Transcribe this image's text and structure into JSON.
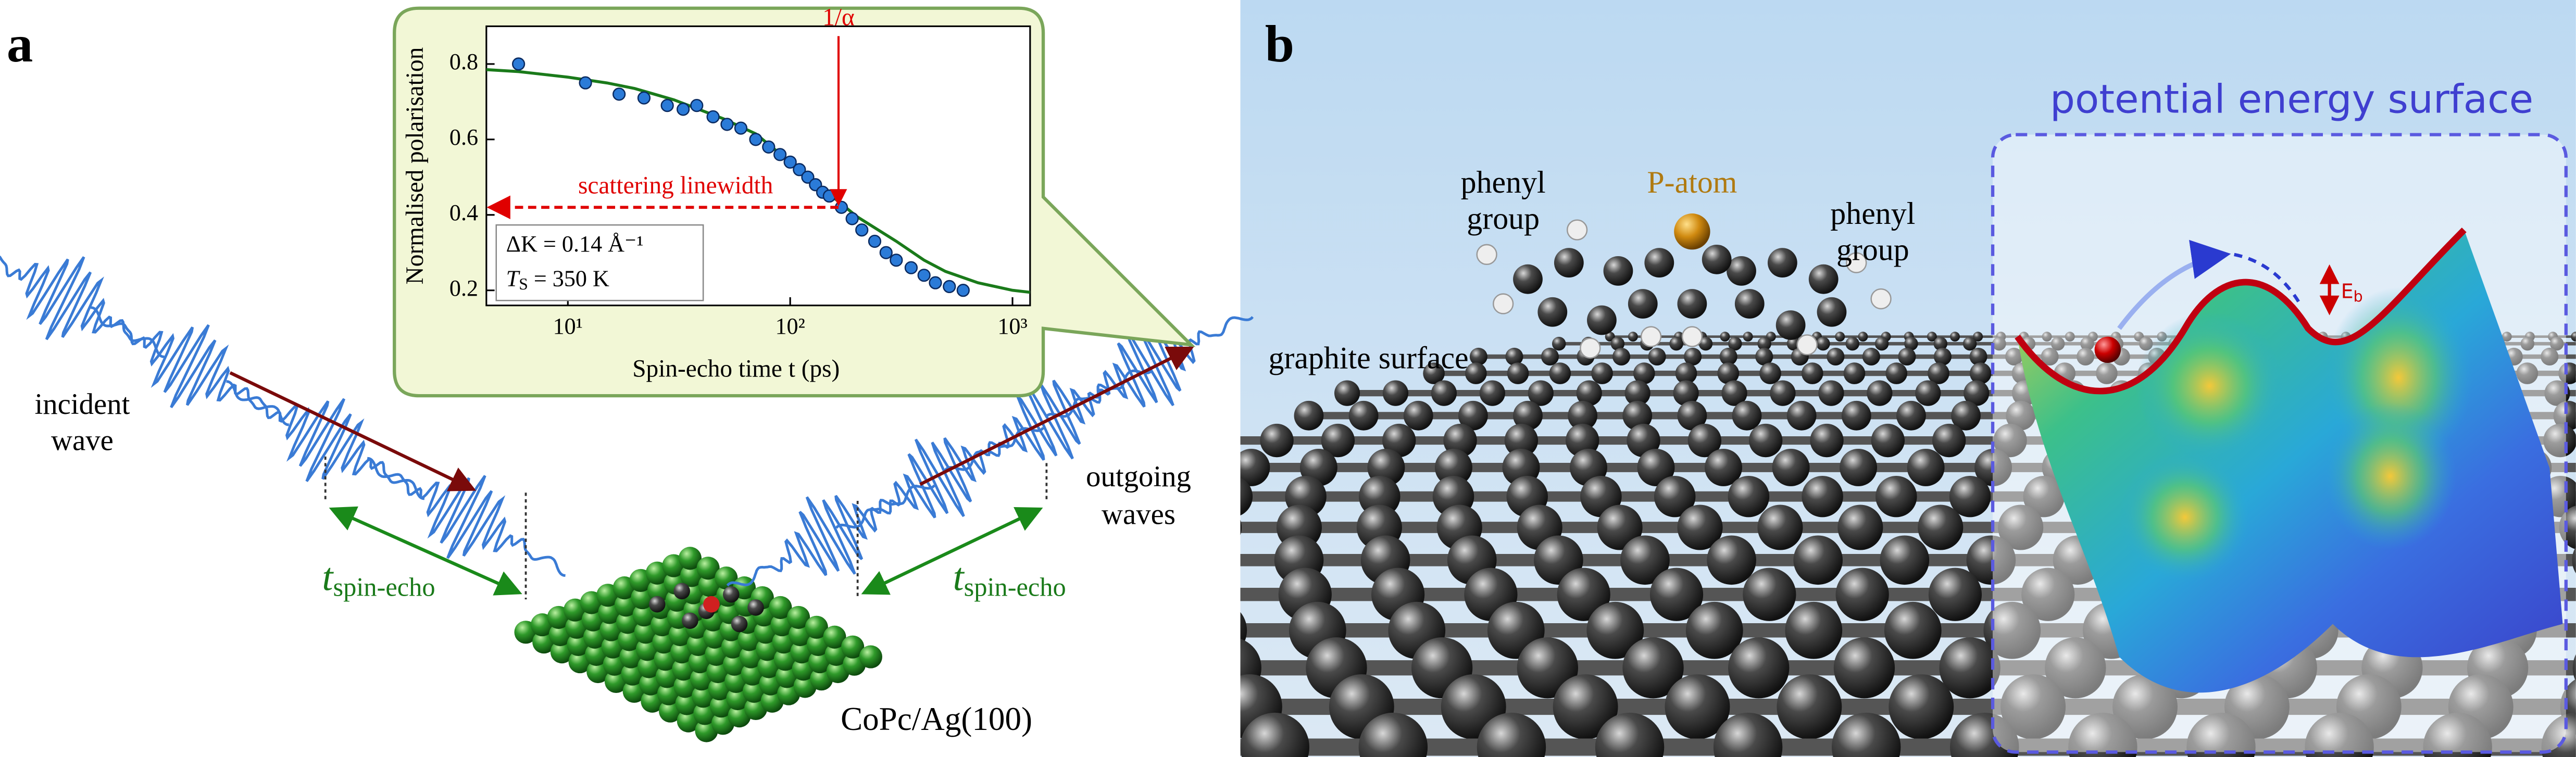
{
  "panel_a": {
    "label": "a",
    "incident": [
      "incident",
      "wave"
    ],
    "outgoing": [
      "outgoing",
      "waves"
    ],
    "spin_echo_left": {
      "t": "t",
      "sub": "spin-echo"
    },
    "spin_echo_right": {
      "t": "t",
      "sub": "spin-echo"
    },
    "sample": "CoPc/Ag(100)"
  },
  "chart_data": {
    "type": "scatter",
    "xlabel": "Spin-echo time t (ps)",
    "ylabel": "Normalised polarisation",
    "xscale": "log",
    "xlim": [
      4.3,
      1200
    ],
    "ylim": [
      0.16,
      0.9
    ],
    "xticks": [
      {
        "value": 10,
        "label": "10¹"
      },
      {
        "value": 100,
        "label": "10²"
      },
      {
        "value": 1000,
        "label": "10³"
      }
    ],
    "yticks": [
      0.2,
      0.4,
      0.6,
      0.8
    ],
    "series": [
      {
        "color": "#2b7bd8",
        "x": [
          6,
          12,
          17,
          22,
          28,
          33,
          38,
          45,
          52,
          60,
          70,
          80,
          90,
          100,
          110,
          120,
          130,
          140,
          150,
          170,
          190,
          210,
          240,
          270,
          300,
          350,
          400,
          450,
          520,
          600
        ],
        "values": [
          0.8,
          0.75,
          0.72,
          0.71,
          0.69,
          0.68,
          0.69,
          0.66,
          0.64,
          0.63,
          0.6,
          0.58,
          0.56,
          0.54,
          0.52,
          0.5,
          0.48,
          0.46,
          0.45,
          0.42,
          0.39,
          0.36,
          0.33,
          0.3,
          0.28,
          0.26,
          0.24,
          0.22,
          0.21,
          0.2
        ]
      },
      {
        "type": "line",
        "color": "#1a7a1a",
        "x": [
          4.3,
          6,
          10,
          15,
          20,
          30,
          50,
          70,
          100,
          150,
          200,
          300,
          400,
          500,
          700,
          1000,
          1200
        ],
        "values": [
          0.785,
          0.78,
          0.765,
          0.75,
          0.735,
          0.705,
          0.655,
          0.615,
          0.54,
          0.455,
          0.395,
          0.33,
          0.28,
          0.25,
          0.22,
          0.2,
          0.195
        ]
      }
    ],
    "alpha_marker": {
      "text": "1/α",
      "x": 165
    },
    "linewidth_marker": {
      "text": "scattering linewidth",
      "y": 0.42
    },
    "legend": {
      "dk": "ΔK = 0.14 Å⁻¹",
      "ts": {
        "t": "T",
        "sub": "S",
        "rest": " = 350 K"
      }
    }
  },
  "panel_b": {
    "label": "b",
    "title": "potential energy surface",
    "phenyl_left": [
      "phenyl",
      "group"
    ],
    "phenyl_right": [
      "phenyl",
      "group"
    ],
    "p_atom": "P-atom",
    "graphite": "graphite surface",
    "barrier": {
      "e": "E",
      "sub": "b"
    }
  }
}
